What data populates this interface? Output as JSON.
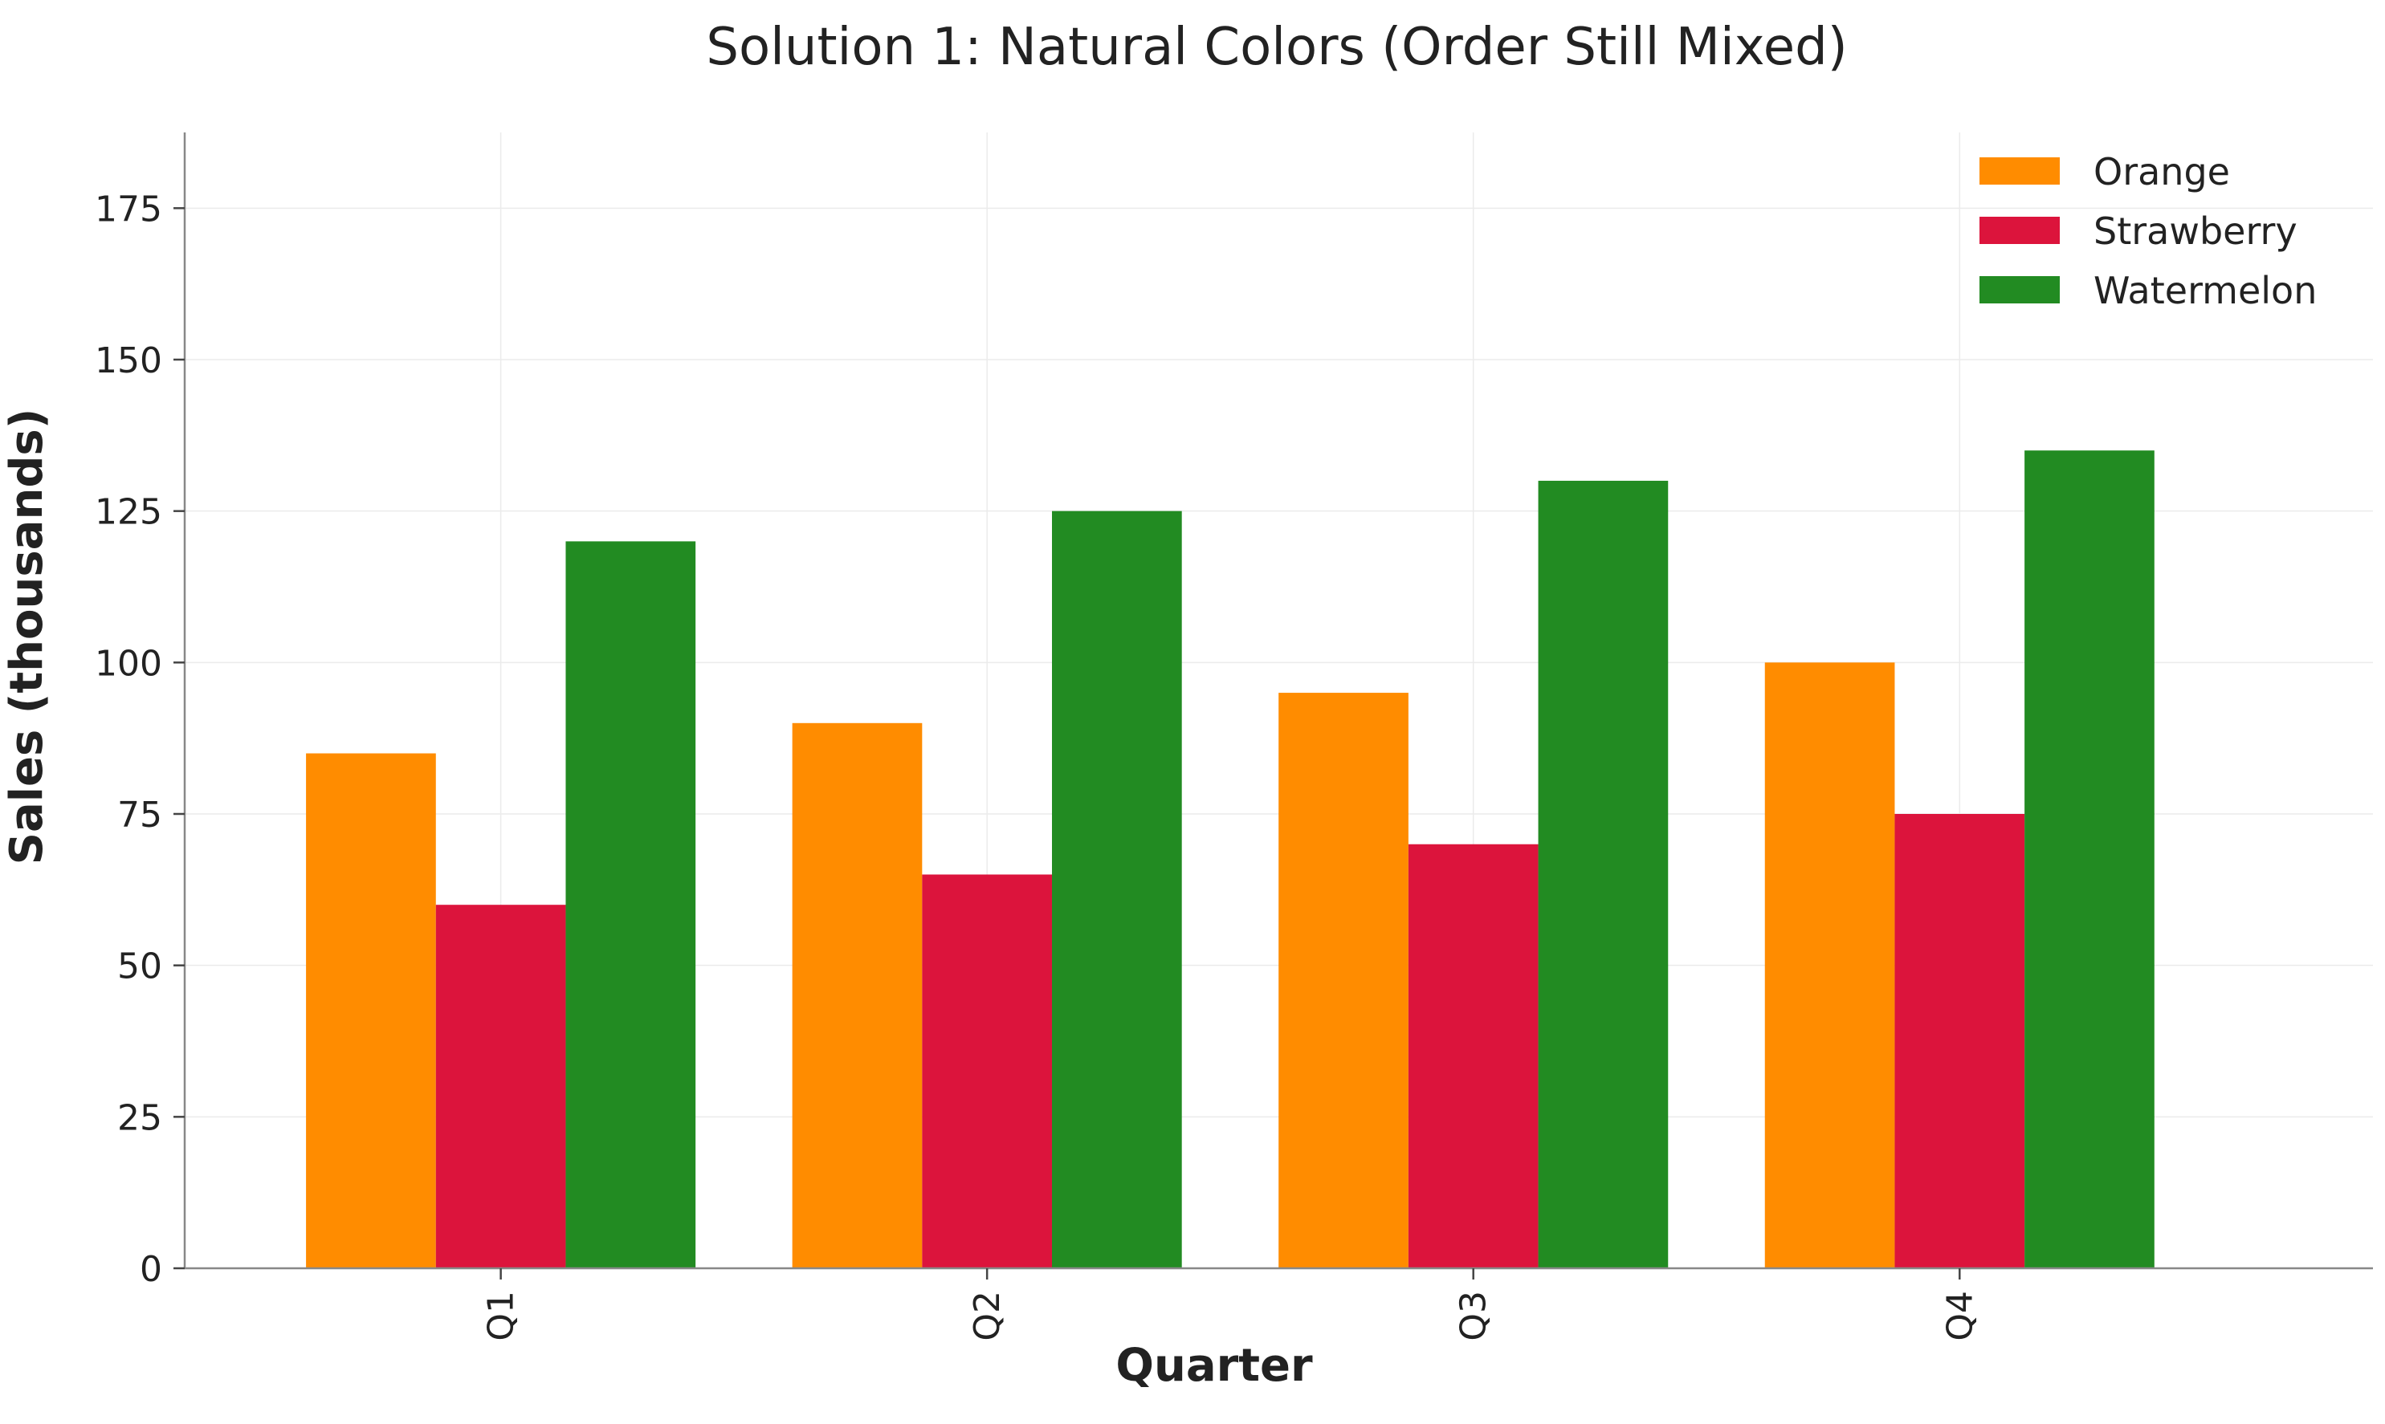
{
  "chart_data": {
    "type": "bar",
    "title": "Solution 1: Natural Colors (Order Still Mixed)",
    "xlabel": "Quarter",
    "ylabel": "Sales (thousands)",
    "categories": [
      "Q1",
      "Q2",
      "Q3",
      "Q4"
    ],
    "series": [
      {
        "name": "Orange",
        "color": "#ff8c00",
        "values": [
          85,
          90,
          95,
          100
        ]
      },
      {
        "name": "Strawberry",
        "color": "#dc143c",
        "values": [
          60,
          65,
          70,
          75
        ]
      },
      {
        "name": "Watermelon",
        "color": "#228b22",
        "values": [
          120,
          125,
          130,
          135
        ]
      }
    ],
    "ylim": [
      0,
      187.5
    ],
    "yticks": [
      0,
      25,
      50,
      75,
      100,
      125,
      150,
      175
    ],
    "grid": true,
    "legend_position": "top-right"
  }
}
